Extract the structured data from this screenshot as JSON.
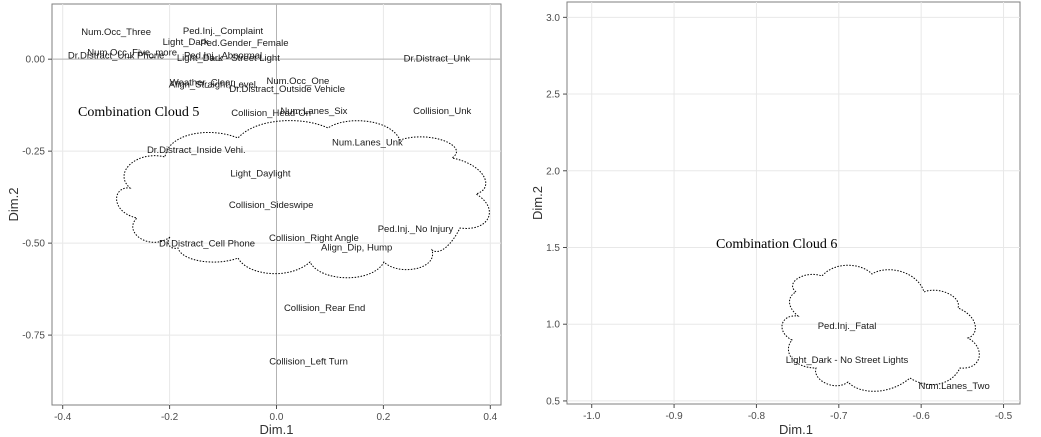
{
  "chart_data": [
    {
      "type": "scatter",
      "xlabel": "Dim.1",
      "ylabel": "Dim.2",
      "xlim": [
        -0.42,
        0.42
      ],
      "ylim": [
        -0.94,
        0.15
      ],
      "xticks": [
        -0.4,
        -0.2,
        0.0,
        0.2,
        0.4
      ],
      "xtick_labels": [
        "-0.4",
        "-0.2",
        "0.0",
        "0.2",
        "0.4"
      ],
      "yticks": [
        0.0,
        -0.25,
        -0.5,
        -0.75
      ],
      "ytick_labels": [
        "0.00",
        "-0.25",
        "-0.50",
        "-0.75"
      ],
      "grid": true,
      "reference_lines": {
        "x": 0,
        "y": 0
      },
      "annotation": "Combination Cloud 5",
      "points": [
        {
          "label": "Num.Occ_Three",
          "x": -0.3,
          "y": 0.075
        },
        {
          "label": "Ped.Inj._Complaint",
          "x": -0.1,
          "y": 0.078
        },
        {
          "label": "Light_Dark",
          "x": -0.17,
          "y": 0.048
        },
        {
          "label": "Ped.Gender_Female",
          "x": -0.06,
          "y": 0.045
        },
        {
          "label": "Num.Occ_Five_more",
          "x": -0.27,
          "y": 0.02
        },
        {
          "label": "Dr.Distract_Unk Phone",
          "x": -0.3,
          "y": 0.012
        },
        {
          "label": "Ped.Inj._Abnormal",
          "x": -0.1,
          "y": 0.012
        },
        {
          "label": "Light_Dark - Street Light",
          "x": -0.09,
          "y": 0.005
        },
        {
          "label": "Dr.Distract_Unk",
          "x": 0.3,
          "y": 0.003
        },
        {
          "label": "Weather_Clear",
          "x": -0.14,
          "y": -0.062
        },
        {
          "label": "Num.Occ_One",
          "x": 0.04,
          "y": -0.058
        },
        {
          "label": "Align_Straight, Level",
          "x": -0.12,
          "y": -0.068
        },
        {
          "label": "Dr.Distract_Outside Vehicle",
          "x": 0.02,
          "y": -0.08
        },
        {
          "label": "Collision_Unk",
          "x": 0.31,
          "y": -0.14
        },
        {
          "label": "Num.Lanes_Six",
          "x": 0.07,
          "y": -0.14
        },
        {
          "label": "Collision_Head-On",
          "x": -0.01,
          "y": -0.145
        },
        {
          "label": "Num.Lanes_Unk",
          "x": 0.17,
          "y": -0.225
        },
        {
          "label": "Dr.Distract_Inside Vehi.",
          "x": -0.15,
          "y": -0.245
        },
        {
          "label": "Light_Daylight",
          "x": -0.03,
          "y": -0.31
        },
        {
          "label": "Collision_Sideswipe",
          "x": -0.01,
          "y": -0.395
        },
        {
          "label": "Ped.Inj._No Injury",
          "x": 0.26,
          "y": -0.46
        },
        {
          "label": "Collision_Right Angle",
          "x": 0.07,
          "y": -0.485
        },
        {
          "label": "Dr.Distract_Cell Phone",
          "x": -0.13,
          "y": -0.5
        },
        {
          "label": "Align_Dip, Hump",
          "x": 0.15,
          "y": -0.51
        },
        {
          "label": "Collision_Rear End",
          "x": 0.09,
          "y": -0.675
        },
        {
          "label": "Collision_Left Turn",
          "x": 0.06,
          "y": -0.82
        }
      ]
    },
    {
      "type": "scatter",
      "xlabel": "Dim.1",
      "ylabel": "Dim.2",
      "xlim": [
        -1.03,
        -0.48
      ],
      "ylim": [
        0.48,
        3.1
      ],
      "xticks": [
        -1.0,
        -0.9,
        -0.8,
        -0.7,
        -0.6,
        -0.5
      ],
      "xtick_labels": [
        "-1.0",
        "-0.9",
        "-0.8",
        "-0.7",
        "-0.6",
        "-0.5"
      ],
      "yticks": [
        0.5,
        1.0,
        1.5,
        2.0,
        2.5,
        3.0
      ],
      "ytick_labels": [
        "0.5",
        "1.0",
        "1.5",
        "2.0",
        "2.5",
        "3.0"
      ],
      "grid": true,
      "annotation": "Combination Cloud 6",
      "points": [
        {
          "label": "Ped.Inj._Fatal",
          "x": -0.69,
          "y": 0.99
        },
        {
          "label": "Light_Dark - No Street Lights",
          "x": -0.69,
          "y": 0.77
        },
        {
          "label": "Num.Lanes_Two",
          "x": -0.56,
          "y": 0.6
        }
      ]
    }
  ]
}
